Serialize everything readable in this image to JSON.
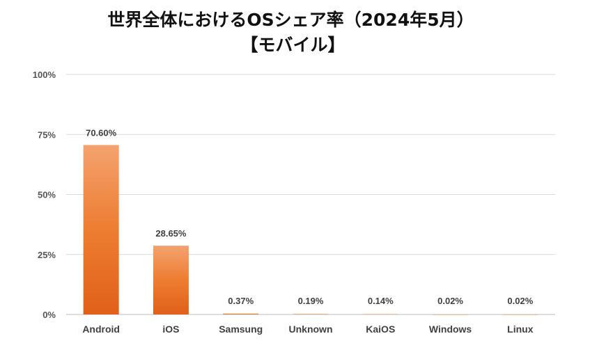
{
  "chart_data": {
    "type": "bar",
    "title": "世界全体におけるOSシェア率（2024年5月）",
    "subtitle": "【モバイル】",
    "categories": [
      "Android",
      "iOS",
      "Samsung",
      "Unknown",
      "KaiOS",
      "Windows",
      "Linux"
    ],
    "values": [
      70.6,
      28.65,
      0.37,
      0.19,
      0.14,
      0.02,
      0.02
    ],
    "data_labels": [
      "70.60%",
      "28.65%",
      "0.37%",
      "0.19%",
      "0.14%",
      "0.02%",
      "0.02%"
    ],
    "yticks": [
      "0%",
      "25%",
      "50%",
      "75%",
      "100%"
    ],
    "ylim": [
      0,
      100
    ],
    "grid": true,
    "bar_color": "#ED7D31",
    "bar_color_light": "#F4A26F",
    "bar_color_dark": "#E0601A"
  }
}
